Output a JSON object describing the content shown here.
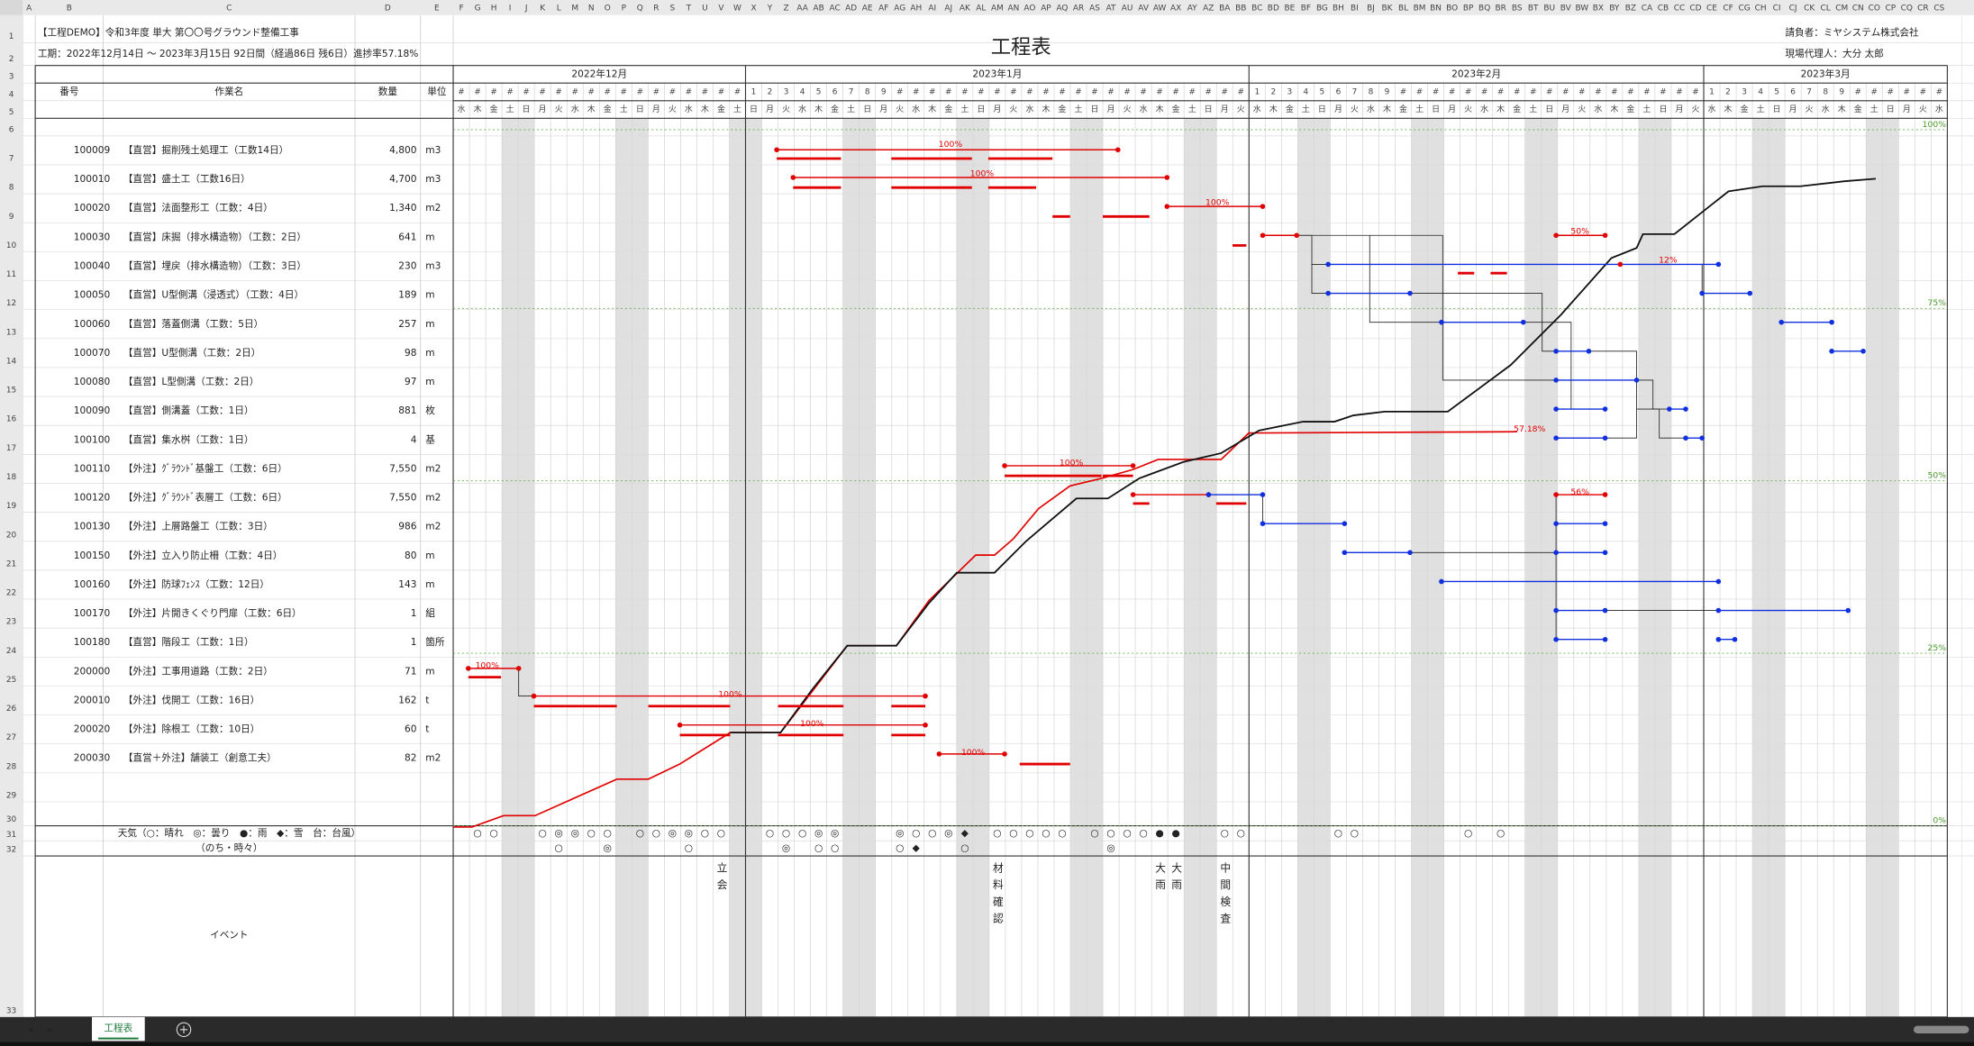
{
  "column_letters": [
    "A",
    "B",
    "C",
    "D",
    "E"
  ],
  "day_columns": [
    "F",
    "G",
    "H",
    "I",
    "J",
    "K",
    "L",
    "M",
    "N",
    "O",
    "P",
    "Q",
    "R",
    "S",
    "T",
    "U",
    "V",
    "W",
    "X",
    "Y",
    "Z",
    "AA",
    "AB",
    "AC",
    "AD",
    "AE",
    "AF",
    "AG",
    "AH",
    "AI",
    "AJ",
    "AK",
    "AL",
    "AM",
    "AN",
    "AO",
    "AP",
    "AQ",
    "AR",
    "AS",
    "AT",
    "AU",
    "AV",
    "AW",
    "AX",
    "AY",
    "AZ",
    "BA",
    "BB",
    "BC",
    "BD",
    "BE",
    "BF",
    "BG",
    "BH",
    "BI",
    "BJ",
    "BK",
    "BL",
    "BM",
    "BN",
    "BO",
    "BP",
    "BQ",
    "BR",
    "BS",
    "BT",
    "BU",
    "BV",
    "BW",
    "BX",
    "BY",
    "BZ",
    "CA",
    "CB",
    "CC",
    "CD",
    "CE",
    "CF",
    "CG",
    "CH",
    "CI",
    "CJ",
    "CK",
    "CL",
    "CM",
    "CN",
    "CO",
    "CP",
    "CQ",
    "CR",
    "CS"
  ],
  "row_numbers": [
    1,
    2,
    3,
    4,
    5,
    6,
    7,
    8,
    9,
    10,
    11,
    12,
    13,
    14,
    15,
    16,
    17,
    18,
    19,
    20,
    21,
    22,
    23,
    24,
    25,
    26,
    27,
    28,
    29,
    30,
    31,
    32,
    33
  ],
  "header": {
    "project": "【工程DEMO】令和3年度 単大 第〇〇号グラウンド整備工事",
    "period": "工期：2022年12月14日 ～ 2023年3月15日 92日間（経過86日 残6日）進捗率57.18%",
    "title": "工程表",
    "contractor": "請負者：ミヤシステム株式会社",
    "site_agent": "現場代理人：大分 太郎"
  },
  "table_headers": {
    "id": "番号",
    "name": "作業名",
    "qty": "数量",
    "unit": "単位"
  },
  "months": [
    "2022年12月",
    "2023年1月",
    "2023年2月",
    "2023年3月"
  ],
  "day_labels": [
    "#",
    "#",
    "#",
    "#",
    "#",
    "#",
    "#",
    "#",
    "#",
    "#",
    "#",
    "#",
    "#",
    "#",
    "#",
    "#",
    "#",
    "#",
    "1",
    "2",
    "3",
    "4",
    "5",
    "6",
    "7",
    "8",
    "9",
    "#",
    "#",
    "#",
    "#",
    "#",
    "#",
    "#",
    "#",
    "#",
    "#",
    "#",
    "#",
    "#",
    "#",
    "#",
    "#",
    "#",
    "#",
    "#",
    "#",
    "#",
    "#",
    "1",
    "2",
    "3",
    "4",
    "5",
    "6",
    "7",
    "8",
    "9",
    "#",
    "#",
    "#",
    "#",
    "#",
    "#",
    "#",
    "#",
    "#",
    "#",
    "#",
    "#",
    "#",
    "#",
    "#",
    "#",
    "#",
    "#",
    "#",
    "1",
    "2",
    "3",
    "4",
    "5",
    "6",
    "7",
    "8",
    "9",
    "#",
    "#",
    "#",
    "#",
    "#",
    "#"
  ],
  "weekdays": [
    "水",
    "木",
    "金",
    "土",
    "日",
    "月",
    "火",
    "水",
    "木",
    "金",
    "土",
    "日",
    "月",
    "火",
    "水",
    "木",
    "金",
    "土",
    "日",
    "月",
    "火",
    "水",
    "木",
    "金",
    "土",
    "日",
    "月",
    "火",
    "水",
    "木",
    "金",
    "土",
    "日",
    "月",
    "火",
    "水",
    "木",
    "金",
    "土",
    "日",
    "月",
    "火",
    "水",
    "木",
    "金",
    "土",
    "日",
    "月",
    "火",
    "水",
    "木",
    "金",
    "土",
    "日",
    "月",
    "火",
    "水",
    "木",
    "金",
    "土",
    "日",
    "月",
    "火",
    "水",
    "木",
    "金",
    "土",
    "日",
    "月",
    "火",
    "水",
    "木",
    "金",
    "土",
    "日",
    "月",
    "火",
    "水",
    "木",
    "金",
    "土",
    "日",
    "月",
    "火",
    "水",
    "木",
    "金",
    "土",
    "日",
    "月",
    "火",
    "水"
  ],
  "tasks": [
    {
      "id": "100009",
      "name": "【直営】掘削残土処理工（工数14日）",
      "qty": "4,800",
      "unit": "m3",
      "progress": "100%"
    },
    {
      "id": "100010",
      "name": "【直営】盛土工（工数16日）",
      "qty": "4,700",
      "unit": "m3",
      "progress": "100%"
    },
    {
      "id": "100020",
      "name": "【直営】法面整形工（工数：4日）",
      "qty": "1,340",
      "unit": "m2",
      "progress": "100%"
    },
    {
      "id": "100030",
      "name": "【直営】床掘（排水構造物）（工数：2日）",
      "qty": "641",
      "unit": "m",
      "progress": "50%"
    },
    {
      "id": "100040",
      "name": "【直営】埋戻（排水構造物）（工数：3日）",
      "qty": "230",
      "unit": "m3",
      "progress": "12%"
    },
    {
      "id": "100050",
      "name": "【直営】U型側溝（浸透式）（工数：4日）",
      "qty": "189",
      "unit": "m",
      "progress": null
    },
    {
      "id": "100060",
      "name": "【直営】落蓋側溝（工数：5日）",
      "qty": "257",
      "unit": "m",
      "progress": null
    },
    {
      "id": "100070",
      "name": "【直営】U型側溝（工数：2日）",
      "qty": "98",
      "unit": "m",
      "progress": null
    },
    {
      "id": "100080",
      "name": "【直営】L型側溝（工数：2日）",
      "qty": "97",
      "unit": "m",
      "progress": null
    },
    {
      "id": "100090",
      "name": "【直営】側溝蓋（工数：1日）",
      "qty": "881",
      "unit": "枚",
      "progress": null
    },
    {
      "id": "100100",
      "name": "【直営】集水桝（工数：1日）",
      "qty": "4",
      "unit": "基",
      "progress": null
    },
    {
      "id": "100110",
      "name": "【外注】ｸﾞﾗｳﾝﾄﾞ基盤工（工数：6日）",
      "qty": "7,550",
      "unit": "m2",
      "progress": "100%"
    },
    {
      "id": "100120",
      "name": "【外注】ｸﾞﾗｳﾝﾄﾞ表層工（工数：6日）",
      "qty": "7,550",
      "unit": "m2",
      "progress": "56%"
    },
    {
      "id": "100130",
      "name": "【外注】上層路盤工（工数：3日）",
      "qty": "986",
      "unit": "m2",
      "progress": null
    },
    {
      "id": "100150",
      "name": "【外注】立入り防止柵（工数：4日）",
      "qty": "80",
      "unit": "m",
      "progress": null
    },
    {
      "id": "100160",
      "name": "【外注】防球ﾌｪﾝｽ（工数：12日）",
      "qty": "143",
      "unit": "m",
      "progress": null
    },
    {
      "id": "100170",
      "name": "【外注】片開きくぐり門扉（工数：6日）",
      "qty": "1",
      "unit": "組",
      "progress": null
    },
    {
      "id": "100180",
      "name": "【直営】階段工（工数：1日）",
      "qty": "1",
      "unit": "箇所",
      "progress": null
    },
    {
      "id": "200000",
      "name": "【外注】工事用道路（工数：2日）",
      "qty": "71",
      "unit": "m",
      "progress": "100%"
    },
    {
      "id": "200010",
      "name": "【外注】伐開工（工数：16日）",
      "qty": "162",
      "unit": "t",
      "progress": "100%"
    },
    {
      "id": "200020",
      "name": "【外注】除根工（工数：10日）",
      "qty": "60",
      "unit": "t",
      "progress": "100%"
    },
    {
      "id": "200030",
      "name": "【直営＋外注】舗装工（創意工夫）",
      "qty": "82",
      "unit": "m2",
      "progress": "100%"
    }
  ],
  "overall_progress": "57.18%",
  "percent_axis": [
    "100%",
    "75%",
    "50%",
    "25%",
    "0%"
  ],
  "weather": {
    "label": "天気（○：晴れ　◎：曇り　●：雨　◆：雪　台：台風）",
    "sub_label": "（のち・時々）",
    "main": [
      null,
      "○",
      "○",
      null,
      null,
      "○",
      "◎",
      "◎",
      "○",
      "○",
      null,
      "○",
      "○",
      "◎",
      "◎",
      "○",
      "○",
      null,
      null,
      "○",
      "○",
      "○",
      "◎",
      "◎",
      null,
      null,
      null,
      "◎",
      "○",
      "○",
      "◎",
      "◆",
      null,
      "○",
      "○",
      "○",
      "○",
      "○",
      null,
      "○",
      "○",
      "○",
      "○",
      "●",
      "●",
      null,
      null,
      "○",
      "○",
      null,
      null,
      null,
      null,
      null,
      "○",
      "○",
      null,
      null,
      null,
      null,
      null,
      null,
      "○",
      null,
      "○",
      null,
      null,
      null,
      null,
      null,
      null,
      null,
      null,
      null,
      null,
      null,
      null,
      null,
      null,
      null,
      null,
      null,
      null,
      null,
      null,
      null,
      null,
      null,
      null,
      null,
      null,
      null
    ],
    "sub": [
      null,
      null,
      null,
      null,
      null,
      null,
      "○",
      null,
      null,
      "◎",
      null,
      null,
      null,
      null,
      "○",
      null,
      null,
      null,
      null,
      null,
      "◎",
      null,
      "○",
      "○",
      null,
      null,
      null,
      "○",
      "◆",
      null,
      null,
      "○",
      null,
      null,
      null,
      null,
      null,
      null,
      null,
      null,
      "◎",
      null,
      null,
      null,
      null,
      null,
      null,
      null,
      null,
      null,
      null,
      null,
      null,
      null,
      null,
      null,
      null,
      null,
      null,
      null,
      null,
      null,
      null,
      null,
      null,
      null,
      null,
      null,
      null,
      null,
      null,
      null,
      null,
      null,
      null,
      null,
      null,
      null,
      null,
      null,
      null,
      null,
      null,
      null,
      null,
      null,
      null,
      null,
      null,
      null,
      null,
      null
    ]
  },
  "events": {
    "label": "イベント",
    "items": [
      null,
      null,
      null,
      null,
      null,
      null,
      null,
      null,
      null,
      null,
      null,
      null,
      null,
      null,
      null,
      null,
      "立会",
      null,
      null,
      null,
      null,
      null,
      null,
      null,
      null,
      null,
      null,
      null,
      null,
      null,
      null,
      null,
      null,
      "材料確認",
      null,
      null,
      null,
      null,
      null,
      null,
      null,
      null,
      null,
      "大雨",
      "大雨",
      null,
      null,
      "中間検査",
      null,
      null,
      null,
      null,
      null,
      null,
      null,
      null,
      null,
      null,
      null,
      null,
      null,
      null,
      null,
      null,
      null,
      null,
      null,
      null,
      null,
      null,
      null,
      null,
      null,
      null,
      null,
      null,
      null,
      null,
      null,
      null,
      null,
      null,
      null,
      null,
      null,
      null,
      null,
      null,
      null,
      null,
      null,
      null
    ]
  },
  "sheet_tab": "工程表"
}
